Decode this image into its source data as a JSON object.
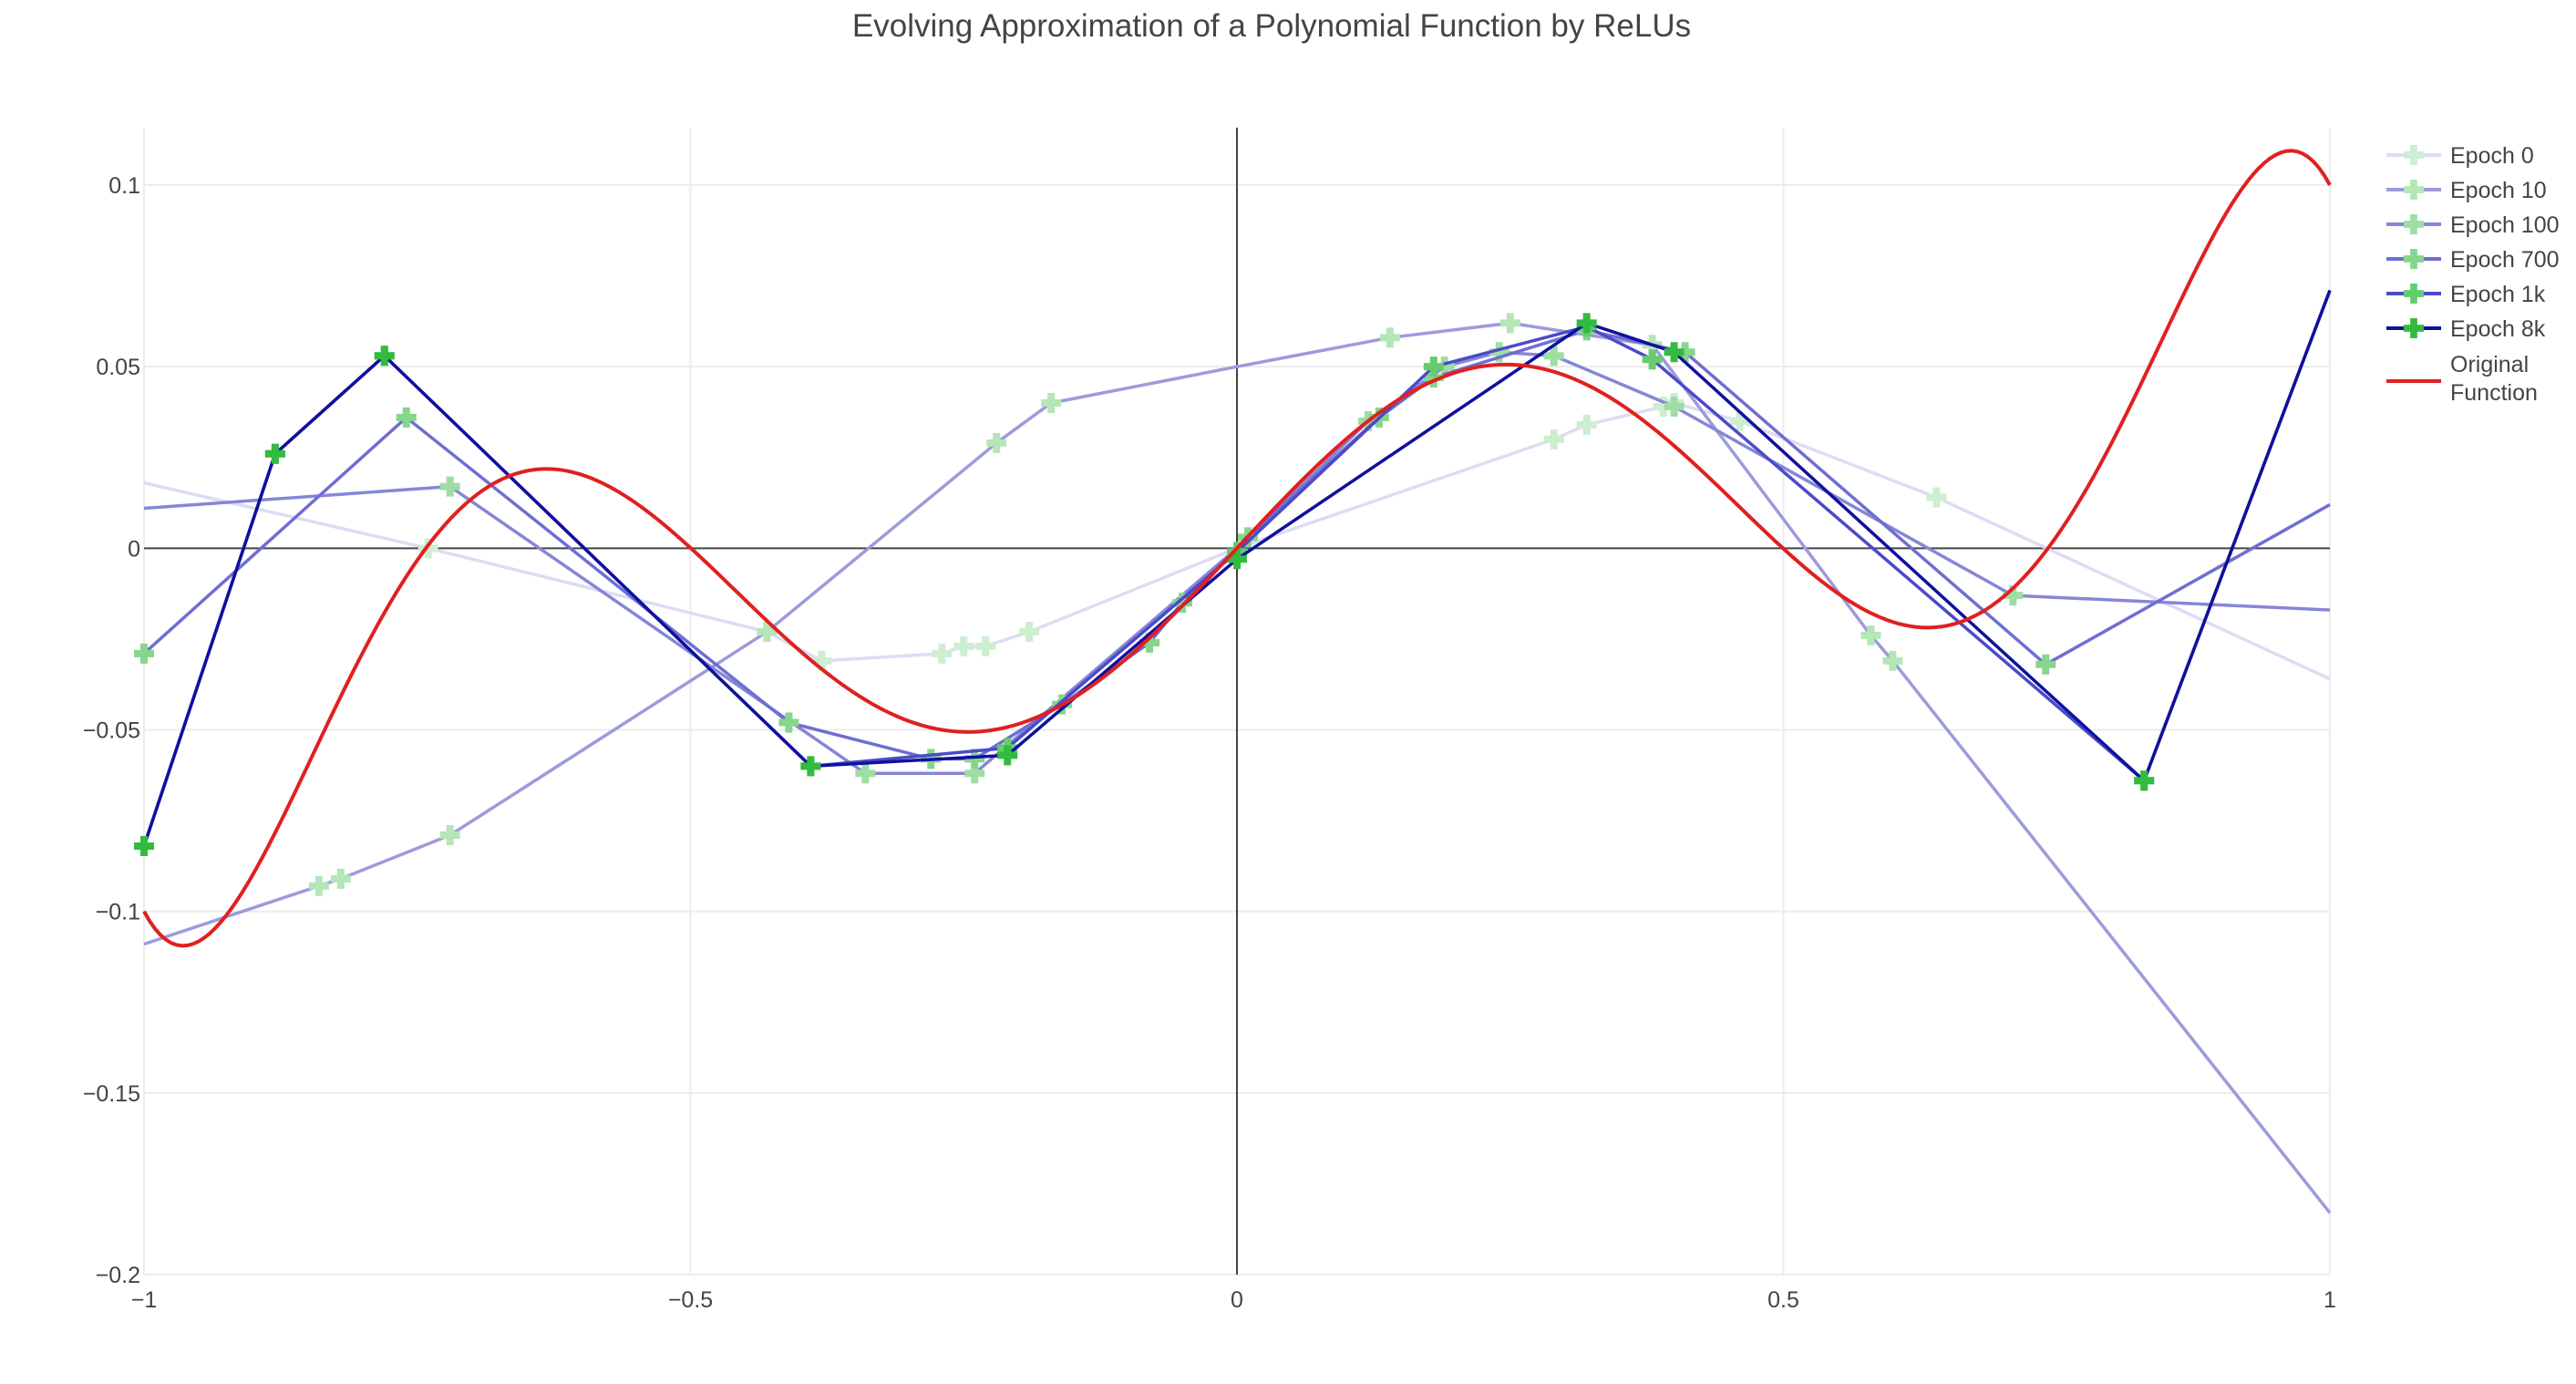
{
  "chart_data": {
    "type": "line",
    "title": "Evolving Approximation of a Polynomial Function by ReLUs",
    "xlabel": "",
    "ylabel": "",
    "xlim": [
      -1,
      1
    ],
    "ylim": [
      -0.2,
      0.115
    ],
    "x_ticks": [
      -1,
      -0.5,
      0,
      0.5,
      1
    ],
    "x_tick_labels": [
      "−1",
      "−0.5",
      "0",
      "0.5",
      "1"
    ],
    "y_ticks": [
      -0.2,
      -0.15,
      -0.1,
      -0.05,
      0,
      0.05,
      0.1
    ],
    "y_tick_labels": [
      "−0.2",
      "−0.15",
      "−0.1",
      "−0.05",
      "0",
      "0.05",
      "0.1"
    ],
    "grid": true,
    "legend_position": "top-right",
    "series": [
      {
        "name": "Epoch 0",
        "line_color": "#dcdcf4",
        "marker_color": "#cdeed0",
        "legend_text_color": "#aaaaaa",
        "points": [
          [
            -1,
            0.018
          ],
          [
            -0.74,
            0.0
          ],
          [
            -0.43,
            -0.023
          ],
          [
            -0.38,
            -0.031
          ],
          [
            -0.27,
            -0.029
          ],
          [
            -0.25,
            -0.027
          ],
          [
            -0.23,
            -0.027
          ],
          [
            -0.19,
            -0.023
          ],
          [
            0,
            0.0
          ],
          [
            0.29,
            0.03
          ],
          [
            0.32,
            0.034
          ],
          [
            0.39,
            0.039
          ],
          [
            0.4,
            0.04
          ],
          [
            0.46,
            0.035
          ],
          [
            0.64,
            0.014
          ],
          [
            1,
            -0.036
          ]
        ],
        "markers": [
          [
            -0.74,
            0.0
          ],
          [
            -0.43,
            -0.023
          ],
          [
            -0.38,
            -0.031
          ],
          [
            -0.27,
            -0.029
          ],
          [
            -0.25,
            -0.027
          ],
          [
            -0.23,
            -0.027
          ],
          [
            -0.19,
            -0.023
          ],
          [
            0.29,
            0.03
          ],
          [
            0.32,
            0.034
          ],
          [
            0.39,
            0.039
          ],
          [
            0.4,
            0.04
          ],
          [
            0.46,
            0.035
          ],
          [
            0.64,
            0.014
          ]
        ]
      },
      {
        "name": "Epoch 10",
        "line_color": "#9b9bdc",
        "marker_color": "#b4e6b7",
        "legend_text_color": "#444444",
        "points": [
          [
            -1,
            -0.109
          ],
          [
            -0.84,
            -0.093
          ],
          [
            -0.82,
            -0.091
          ],
          [
            -0.72,
            -0.079
          ],
          [
            -0.43,
            -0.023
          ],
          [
            -0.22,
            0.029
          ],
          [
            -0.17,
            0.04
          ],
          [
            0,
            0.05
          ],
          [
            0.14,
            0.058
          ],
          [
            0.25,
            0.062
          ],
          [
            0.38,
            0.056
          ],
          [
            0.58,
            -0.024
          ],
          [
            0.6,
            -0.031
          ],
          [
            1,
            -0.183
          ]
        ],
        "markers": [
          [
            -0.84,
            -0.093
          ],
          [
            -0.82,
            -0.091
          ],
          [
            -0.72,
            -0.079
          ],
          [
            -0.43,
            -0.023
          ],
          [
            -0.22,
            0.029
          ],
          [
            -0.17,
            0.04
          ],
          [
            0.14,
            0.058
          ],
          [
            0.25,
            0.062
          ],
          [
            0.38,
            0.056
          ],
          [
            0.58,
            -0.024
          ],
          [
            0.6,
            -0.031
          ]
        ]
      },
      {
        "name": "Epoch 100",
        "line_color": "#8686d8",
        "marker_color": "#9edea3",
        "legend_text_color": "#444444",
        "points": [
          [
            -1,
            0.011
          ],
          [
            -0.72,
            0.017
          ],
          [
            -0.34,
            -0.062
          ],
          [
            -0.24,
            -0.062
          ],
          [
            0,
            0.0
          ],
          [
            0.12,
            0.035
          ],
          [
            0.19,
            0.05
          ],
          [
            0.24,
            0.054
          ],
          [
            0.29,
            0.053
          ],
          [
            0.4,
            0.039
          ],
          [
            0.71,
            -0.013
          ],
          [
            1,
            -0.017
          ]
        ],
        "markers": [
          [
            -0.72,
            0.017
          ],
          [
            -0.34,
            -0.062
          ],
          [
            -0.24,
            -0.062
          ],
          [
            0.12,
            0.035
          ],
          [
            0.19,
            0.05
          ],
          [
            0.24,
            0.054
          ],
          [
            0.29,
            0.053
          ],
          [
            0.4,
            0.039
          ],
          [
            0.71,
            -0.013
          ]
        ]
      },
      {
        "name": "Epoch 700",
        "line_color": "#6e6ed2",
        "marker_color": "#86d68c",
        "legend_text_color": "#444444",
        "points": [
          [
            -1,
            -0.029
          ],
          [
            -0.76,
            0.036
          ],
          [
            -0.41,
            -0.048
          ],
          [
            -0.28,
            -0.058
          ],
          [
            -0.24,
            -0.058
          ],
          [
            -0.16,
            -0.043
          ],
          [
            -0.08,
            -0.026
          ],
          [
            -0.05,
            -0.015
          ],
          [
            0.01,
            0.003
          ],
          [
            0.13,
            0.036
          ],
          [
            0.18,
            0.047
          ],
          [
            0.32,
            0.06
          ],
          [
            0.41,
            0.054
          ],
          [
            0.74,
            -0.032
          ],
          [
            1,
            0.012
          ]
        ],
        "markers": [
          [
            -1,
            -0.029
          ],
          [
            -0.76,
            0.036
          ],
          [
            -0.41,
            -0.048
          ],
          [
            -0.28,
            -0.058
          ],
          [
            -0.24,
            -0.058
          ],
          [
            -0.16,
            -0.043
          ],
          [
            -0.08,
            -0.026
          ],
          [
            -0.05,
            -0.015
          ],
          [
            0.01,
            0.003
          ],
          [
            0.13,
            0.036
          ],
          [
            0.18,
            0.047
          ],
          [
            0.32,
            0.06
          ],
          [
            0.41,
            0.054
          ],
          [
            0.74,
            -0.032
          ]
        ]
      },
      {
        "name": "Epoch 1k",
        "line_color": "#4b4bc8",
        "marker_color": "#66cc6e",
        "legend_text_color": "#444444",
        "points": [
          [
            -1,
            -0.082
          ],
          [
            -0.88,
            0.026
          ],
          [
            -0.78,
            0.053
          ],
          [
            -0.39,
            -0.06
          ],
          [
            -0.21,
            -0.055
          ],
          [
            0,
            -0.001
          ],
          [
            0.18,
            0.05
          ],
          [
            0.32,
            0.061
          ],
          [
            0.38,
            0.052
          ],
          [
            0.83,
            -0.064
          ],
          [
            1,
            0.071
          ]
        ],
        "markers": [
          [
            -1,
            -0.082
          ],
          [
            -0.88,
            0.026
          ],
          [
            -0.78,
            0.053
          ],
          [
            -0.39,
            -0.06
          ],
          [
            -0.21,
            -0.055
          ],
          [
            0,
            -0.001
          ],
          [
            0.18,
            0.05
          ],
          [
            0.32,
            0.061
          ],
          [
            0.38,
            0.052
          ],
          [
            0.83,
            -0.064
          ]
        ]
      },
      {
        "name": "Epoch 8k",
        "line_color": "#10109e",
        "marker_color": "#33bb40",
        "legend_text_color": "#444444",
        "points": [
          [
            -1,
            -0.082
          ],
          [
            -0.88,
            0.026
          ],
          [
            -0.78,
            0.053
          ],
          [
            -0.39,
            -0.06
          ],
          [
            -0.21,
            -0.057
          ],
          [
            0,
            -0.003
          ],
          [
            0.32,
            0.062
          ],
          [
            0.4,
            0.054
          ],
          [
            0.83,
            -0.064
          ],
          [
            1,
            0.071
          ]
        ],
        "markers": [
          [
            -1,
            -0.082
          ],
          [
            -0.88,
            0.026
          ],
          [
            -0.78,
            0.053
          ],
          [
            -0.39,
            -0.06
          ],
          [
            -0.21,
            -0.057
          ],
          [
            0,
            -0.003
          ],
          [
            0.32,
            0.062
          ],
          [
            0.4,
            0.054
          ],
          [
            0.83,
            -0.064
          ]
        ]
      }
    ],
    "original_function": {
      "name": "Original Function",
      "legend_lines": [
        "Original",
        "Function"
      ],
      "color": "#e02020",
      "formula_coefficients_x1_x3_x5_x7": [
        0.322,
        -2.156,
        3.98,
        -2.046
      ]
    }
  }
}
